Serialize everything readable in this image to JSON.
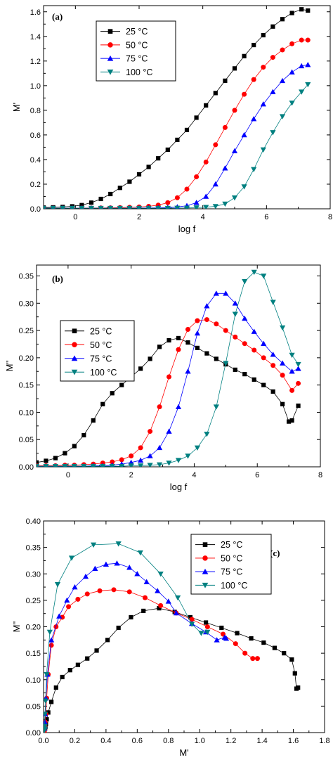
{
  "colors": {
    "25": "#000000",
    "50": "#ff0000",
    "75": "#0000ff",
    "100": "#008080"
  },
  "chart_data": [
    {
      "id": "a",
      "type": "line",
      "panel_label": "(a)",
      "xlabel": "log f",
      "ylabel": "M'",
      "xlim": [
        -1,
        8
      ],
      "ylim": [
        0,
        1.65
      ],
      "xticks": [
        0,
        2,
        4,
        6,
        8
      ],
      "yticks": [
        0.0,
        0.2,
        0.4,
        0.6,
        0.8,
        1.0,
        1.2,
        1.4,
        1.6
      ],
      "ytick_decimals": 1,
      "xtick_decimals": 0,
      "legend_position": "top-left",
      "series": [
        {
          "name": "25 °C",
          "marker": "square",
          "color": "#000000",
          "x": [
            -1.0,
            -0.7,
            -0.4,
            -0.1,
            0.2,
            0.5,
            0.8,
            1.1,
            1.4,
            1.7,
            2.0,
            2.3,
            2.6,
            2.9,
            3.2,
            3.5,
            3.8,
            4.1,
            4.4,
            4.7,
            5.0,
            5.3,
            5.6,
            5.9,
            6.2,
            6.5,
            6.8,
            7.1,
            7.3
          ],
          "y": [
            0.01,
            0.012,
            0.015,
            0.02,
            0.03,
            0.05,
            0.08,
            0.12,
            0.17,
            0.22,
            0.28,
            0.34,
            0.41,
            0.48,
            0.56,
            0.64,
            0.74,
            0.84,
            0.94,
            1.04,
            1.14,
            1.24,
            1.33,
            1.41,
            1.48,
            1.54,
            1.59,
            1.62,
            1.61
          ]
        },
        {
          "name": "50 °C",
          "marker": "circle",
          "color": "#ff0000",
          "x": [
            -1.0,
            -0.7,
            -0.4,
            -0.1,
            0.2,
            0.5,
            0.8,
            1.1,
            1.4,
            1.7,
            2.0,
            2.3,
            2.6,
            2.9,
            3.2,
            3.5,
            3.8,
            4.1,
            4.4,
            4.7,
            5.0,
            5.3,
            5.6,
            5.9,
            6.2,
            6.5,
            6.8,
            7.1,
            7.3
          ],
          "y": [
            0.005,
            0.005,
            0.005,
            0.005,
            0.006,
            0.006,
            0.007,
            0.008,
            0.01,
            0.012,
            0.015,
            0.02,
            0.03,
            0.05,
            0.09,
            0.16,
            0.26,
            0.38,
            0.52,
            0.66,
            0.8,
            0.93,
            1.05,
            1.15,
            1.23,
            1.29,
            1.34,
            1.37,
            1.37
          ]
        },
        {
          "name": "75 °C",
          "marker": "triangle-up",
          "color": "#0000ff",
          "x": [
            -1.0,
            -0.7,
            -0.4,
            -0.1,
            0.2,
            0.5,
            0.8,
            1.1,
            1.4,
            1.7,
            2.0,
            2.3,
            2.6,
            2.9,
            3.2,
            3.5,
            3.8,
            4.1,
            4.4,
            4.7,
            5.0,
            5.3,
            5.6,
            5.9,
            6.2,
            6.5,
            6.8,
            7.1,
            7.3
          ],
          "y": [
            0.005,
            0.005,
            0.005,
            0.005,
            0.005,
            0.005,
            0.005,
            0.005,
            0.005,
            0.005,
            0.006,
            0.007,
            0.008,
            0.01,
            0.015,
            0.025,
            0.05,
            0.1,
            0.2,
            0.33,
            0.47,
            0.6,
            0.73,
            0.85,
            0.95,
            1.04,
            1.11,
            1.16,
            1.17
          ]
        },
        {
          "name": "100 °C",
          "marker": "triangle-down",
          "color": "#008080",
          "x": [
            -1.0,
            -0.7,
            -0.4,
            -0.1,
            0.2,
            0.5,
            0.8,
            1.1,
            1.4,
            1.7,
            2.0,
            2.3,
            2.6,
            2.9,
            3.2,
            3.5,
            3.8,
            4.1,
            4.4,
            4.7,
            5.0,
            5.3,
            5.6,
            5.9,
            6.2,
            6.5,
            6.8,
            7.1,
            7.3
          ],
          "y": [
            0.005,
            0.005,
            0.005,
            0.005,
            0.005,
            0.005,
            0.005,
            0.005,
            0.005,
            0.005,
            0.005,
            0.005,
            0.005,
            0.005,
            0.006,
            0.007,
            0.009,
            0.013,
            0.02,
            0.04,
            0.09,
            0.18,
            0.32,
            0.48,
            0.62,
            0.75,
            0.86,
            0.95,
            1.01
          ]
        }
      ]
    },
    {
      "id": "b",
      "type": "line",
      "panel_label": "(b)",
      "xlabel": "log f",
      "ylabel": "M''",
      "xlim": [
        -1,
        8
      ],
      "ylim": [
        0,
        0.37
      ],
      "xticks": [
        0,
        2,
        4,
        6,
        8
      ],
      "yticks": [
        0.0,
        0.05,
        0.1,
        0.15,
        0.2,
        0.25,
        0.3,
        0.35
      ],
      "ytick_decimals": 2,
      "xtick_decimals": 0,
      "legend_position": "left",
      "series": [
        {
          "name": "25 °C",
          "marker": "square",
          "color": "#000000",
          "x": [
            -1.0,
            -0.7,
            -0.4,
            -0.1,
            0.2,
            0.5,
            0.8,
            1.1,
            1.4,
            1.7,
            2.0,
            2.3,
            2.6,
            2.9,
            3.2,
            3.5,
            3.8,
            4.1,
            4.4,
            4.7,
            5.0,
            5.3,
            5.6,
            5.9,
            6.2,
            6.5,
            6.8,
            7.0,
            7.1,
            7.3
          ],
          "y": [
            0.008,
            0.011,
            0.016,
            0.025,
            0.038,
            0.058,
            0.085,
            0.115,
            0.135,
            0.15,
            0.165,
            0.18,
            0.198,
            0.22,
            0.232,
            0.236,
            0.228,
            0.218,
            0.208,
            0.198,
            0.188,
            0.178,
            0.17,
            0.16,
            0.15,
            0.138,
            0.115,
            0.083,
            0.085,
            0.112
          ]
        },
        {
          "name": "50 °C",
          "marker": "circle",
          "color": "#ff0000",
          "x": [
            -1.0,
            -0.7,
            -0.4,
            -0.1,
            0.2,
            0.5,
            0.8,
            1.1,
            1.4,
            1.7,
            2.0,
            2.3,
            2.6,
            2.9,
            3.2,
            3.5,
            3.8,
            4.1,
            4.4,
            4.7,
            5.0,
            5.3,
            5.6,
            5.9,
            6.2,
            6.5,
            6.8,
            7.1,
            7.3
          ],
          "y": [
            0.002,
            0.002,
            0.002,
            0.003,
            0.003,
            0.004,
            0.005,
            0.007,
            0.009,
            0.013,
            0.02,
            0.035,
            0.065,
            0.11,
            0.165,
            0.215,
            0.252,
            0.268,
            0.27,
            0.262,
            0.25,
            0.238,
            0.226,
            0.214,
            0.2,
            0.186,
            0.168,
            0.14,
            0.153
          ]
        },
        {
          "name": "75 °C",
          "marker": "triangle-up",
          "color": "#0000ff",
          "x": [
            -1.0,
            -0.7,
            -0.4,
            -0.1,
            0.2,
            0.5,
            0.8,
            1.1,
            1.4,
            1.7,
            2.0,
            2.3,
            2.6,
            2.9,
            3.2,
            3.5,
            3.8,
            4.1,
            4.4,
            4.7,
            5.0,
            5.3,
            5.6,
            5.9,
            6.2,
            6.5,
            6.8,
            7.1,
            7.3
          ],
          "y": [
            0.001,
            0.001,
            0.001,
            0.001,
            0.001,
            0.001,
            0.002,
            0.002,
            0.003,
            0.005,
            0.008,
            0.012,
            0.02,
            0.035,
            0.065,
            0.11,
            0.175,
            0.245,
            0.295,
            0.318,
            0.318,
            0.3,
            0.272,
            0.248,
            0.226,
            0.206,
            0.19,
            0.175,
            0.18
          ]
        },
        {
          "name": "100 °C",
          "marker": "triangle-down",
          "color": "#008080",
          "x": [
            -1.0,
            -0.7,
            -0.4,
            -0.1,
            0.2,
            0.5,
            0.8,
            1.1,
            1.4,
            1.7,
            2.0,
            2.3,
            2.6,
            2.9,
            3.2,
            3.5,
            3.8,
            4.1,
            4.4,
            4.7,
            5.0,
            5.3,
            5.6,
            5.9,
            6.2,
            6.5,
            6.8,
            7.1,
            7.3
          ],
          "y": [
            0.001,
            0.001,
            0.001,
            0.001,
            0.001,
            0.001,
            0.001,
            0.001,
            0.001,
            0.001,
            0.002,
            0.002,
            0.003,
            0.004,
            0.007,
            0.012,
            0.02,
            0.035,
            0.06,
            0.11,
            0.19,
            0.28,
            0.34,
            0.357,
            0.35,
            0.302,
            0.255,
            0.205,
            0.188
          ]
        }
      ]
    },
    {
      "id": "c",
      "type": "line",
      "panel_label": "(c)",
      "xlabel": "M'",
      "ylabel": "M''",
      "xlim": [
        0,
        1.8
      ],
      "ylim": [
        0,
        0.4
      ],
      "xticks": [
        0.0,
        0.2,
        0.4,
        0.6,
        0.8,
        1.0,
        1.2,
        1.4,
        1.6,
        1.8
      ],
      "yticks": [
        0.0,
        0.05,
        0.1,
        0.15,
        0.2,
        0.25,
        0.3,
        0.35,
        0.4
      ],
      "xtick_labels": [
        "0.0",
        "0.2",
        "0.4",
        "0.6",
        "0.8",
        "1.0",
        "1.2",
        "1.4",
        "1.6",
        "1.8"
      ],
      "ytick_decimals": 2,
      "xtick_decimals": 1,
      "legend_position": "top-right",
      "series": [
        {
          "name": "25 °C",
          "marker": "square",
          "color": "#000000",
          "x": [
            0.01,
            0.012,
            0.015,
            0.02,
            0.03,
            0.05,
            0.08,
            0.12,
            0.17,
            0.22,
            0.28,
            0.34,
            0.41,
            0.48,
            0.56,
            0.64,
            0.74,
            0.84,
            0.94,
            1.04,
            1.14,
            1.24,
            1.33,
            1.41,
            1.48,
            1.54,
            1.59,
            1.61,
            1.62,
            1.63
          ],
          "y": [
            0.008,
            0.011,
            0.016,
            0.025,
            0.038,
            0.058,
            0.085,
            0.105,
            0.118,
            0.128,
            0.14,
            0.155,
            0.175,
            0.198,
            0.218,
            0.23,
            0.235,
            0.228,
            0.218,
            0.208,
            0.198,
            0.188,
            0.178,
            0.17,
            0.16,
            0.15,
            0.138,
            0.112,
            0.083,
            0.085
          ]
        },
        {
          "name": "50 °C",
          "marker": "circle",
          "color": "#ff0000",
          "x": [
            0.005,
            0.006,
            0.008,
            0.01,
            0.015,
            0.02,
            0.03,
            0.05,
            0.08,
            0.12,
            0.16,
            0.22,
            0.28,
            0.36,
            0.45,
            0.55,
            0.65,
            0.75,
            0.85,
            0.95,
            1.05,
            1.15,
            1.23,
            1.29,
            1.34,
            1.37
          ],
          "y": [
            0.002,
            0.005,
            0.013,
            0.02,
            0.035,
            0.065,
            0.11,
            0.165,
            0.2,
            0.218,
            0.238,
            0.252,
            0.262,
            0.268,
            0.27,
            0.266,
            0.255,
            0.24,
            0.226,
            0.214,
            0.2,
            0.186,
            0.168,
            0.15,
            0.14,
            0.14
          ]
        },
        {
          "name": "75 °C",
          "marker": "triangle-up",
          "color": "#0000ff",
          "x": [
            0.005,
            0.007,
            0.008,
            0.01,
            0.015,
            0.025,
            0.05,
            0.1,
            0.15,
            0.2,
            0.27,
            0.33,
            0.4,
            0.47,
            0.55,
            0.6,
            0.66,
            0.73,
            0.8,
            0.85,
            0.95,
            1.04,
            1.11,
            1.16,
            1.17
          ],
          "y": [
            0.008,
            0.012,
            0.02,
            0.035,
            0.065,
            0.11,
            0.175,
            0.22,
            0.25,
            0.275,
            0.295,
            0.31,
            0.318,
            0.32,
            0.312,
            0.3,
            0.285,
            0.268,
            0.248,
            0.226,
            0.206,
            0.19,
            0.175,
            0.18,
            0.178
          ]
        },
        {
          "name": "100 °C",
          "marker": "triangle-down",
          "color": "#008080",
          "x": [
            0.005,
            0.006,
            0.007,
            0.009,
            0.013,
            0.02,
            0.04,
            0.09,
            0.18,
            0.32,
            0.48,
            0.62,
            0.75,
            0.86,
            0.95,
            1.01,
            1.05
          ],
          "y": [
            0.004,
            0.007,
            0.012,
            0.035,
            0.06,
            0.11,
            0.19,
            0.28,
            0.33,
            0.355,
            0.357,
            0.34,
            0.3,
            0.255,
            0.205,
            0.188,
            0.19
          ]
        }
      ]
    }
  ]
}
